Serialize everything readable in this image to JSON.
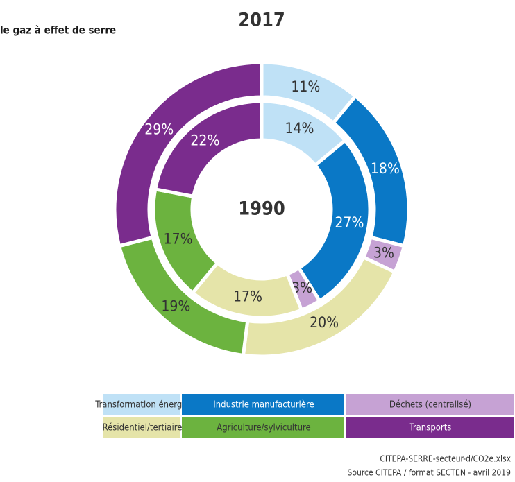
{
  "chart_data": {
    "type": "donut",
    "title": "le gaz à effet de serre",
    "categories": [
      "Transformation énergie",
      "Industrie manufacturière",
      "Déchets (centralisé)",
      "Résidentiel/tertiaire",
      "Agriculture/sylviculture",
      "Transports"
    ],
    "colors": [
      "#bfe1f6",
      "#0a78c6",
      "#c6a2d4",
      "#e5e4a9",
      "#6cb33f",
      "#7a2c8d"
    ],
    "series": [
      {
        "name": "2017",
        "values": [
          11,
          18,
          3,
          20,
          19,
          29
        ],
        "value_labels": [
          "11%",
          "18%",
          "3%",
          "20%",
          "19%",
          "29%"
        ]
      },
      {
        "name": "1990",
        "values": [
          14,
          27,
          3,
          17,
          17,
          22
        ],
        "value_labels": [
          "14%",
          "27%",
          "3%",
          "17%",
          "17%",
          "22%"
        ]
      }
    ],
    "notes": [
      "CITEPA-SERRE-secteur-d/CO2e.xlsx",
      "Source CITEPA / format SECTEN - avril 2019"
    ]
  }
}
